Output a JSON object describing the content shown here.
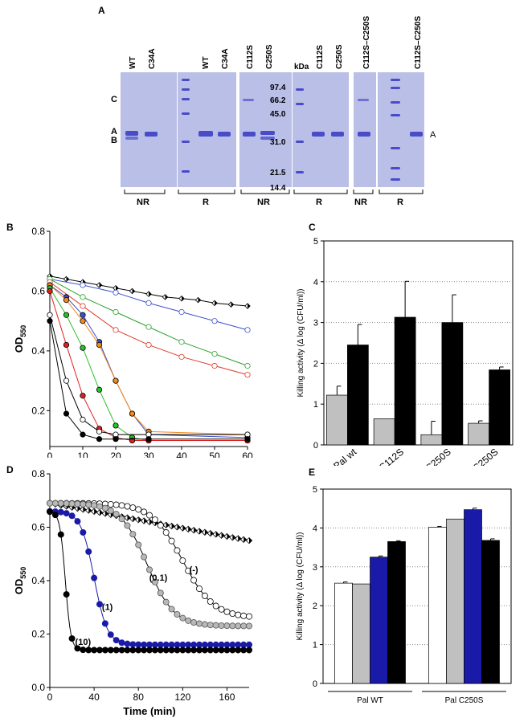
{
  "panel_a": {
    "letter": "A",
    "lane_labels": [
      "WT",
      "C34A",
      "WT",
      "C34A",
      "C112S",
      "C250S",
      "C112S",
      "C250S",
      "C112S–C250S",
      "C112S–C250S"
    ],
    "kda_label": "kDa",
    "mw_markers": [
      "97.4",
      "66.2",
      "45.0",
      "31.0",
      "21.5",
      "14.4"
    ],
    "left_labels": {
      "c": "C",
      "a": "A",
      "b": "B"
    },
    "right_label": "A",
    "group_labels": [
      "NR",
      "R",
      "NR",
      "R",
      "NR",
      "R"
    ]
  },
  "panel_b": {
    "letter": "B"
  },
  "panel_c": {
    "letter": "C"
  },
  "panel_d": {
    "letter": "D"
  },
  "panel_e": {
    "letter": "E"
  },
  "chart_data": [
    {
      "id": "B",
      "type": "line",
      "xlabel": "Time (min)",
      "ylabel": "OD",
      "ylabel_sub": "550",
      "xlim": [
        0,
        60
      ],
      "ylim": [
        0.08,
        0.8
      ],
      "xticks": [
        0,
        10,
        20,
        30,
        40,
        50,
        60
      ],
      "yticks": [
        0.2,
        0.4,
        0.6,
        0.8
      ],
      "series": [
        {
          "name": "control",
          "color": "#000000",
          "marker": "diamond-half",
          "x": [
            0,
            5,
            10,
            15,
            20,
            25,
            30,
            35,
            40,
            45,
            50,
            55,
            60
          ],
          "y": [
            0.65,
            0.64,
            0.63,
            0.62,
            0.61,
            0.6,
            0.59,
            0.58,
            0.575,
            0.57,
            0.56,
            0.555,
            0.55
          ]
        },
        {
          "name": "blue",
          "color": "#3a4fc8",
          "marker": "open",
          "x": [
            0,
            10,
            20,
            30,
            40,
            50,
            60
          ],
          "y": [
            0.64,
            0.62,
            0.595,
            0.56,
            0.53,
            0.5,
            0.47
          ]
        },
        {
          "name": "green",
          "color": "#2aa12a",
          "marker": "open",
          "x": [
            0,
            10,
            20,
            30,
            40,
            50,
            60
          ],
          "y": [
            0.64,
            0.58,
            0.53,
            0.48,
            0.43,
            0.39,
            0.35
          ]
        },
        {
          "name": "red",
          "color": "#e03a2a",
          "marker": "open",
          "x": [
            0,
            10,
            20,
            30,
            40,
            50,
            60
          ],
          "y": [
            0.63,
            0.55,
            0.47,
            0.42,
            0.38,
            0.35,
            0.32
          ]
        },
        {
          "name": "blue-fast",
          "color": "#3a4fc8",
          "marker": "filled",
          "x": [
            0,
            5,
            10,
            15,
            20,
            25,
            30,
            60
          ],
          "y": [
            0.62,
            0.58,
            0.52,
            0.43,
            0.3,
            0.19,
            0.12,
            0.11
          ]
        },
        {
          "name": "orange",
          "color": "#f08a1e",
          "marker": "filled",
          "x": [
            0,
            5,
            10,
            15,
            20,
            25,
            30,
            60
          ],
          "y": [
            0.62,
            0.57,
            0.5,
            0.42,
            0.3,
            0.19,
            0.13,
            0.12
          ]
        },
        {
          "name": "green-fast",
          "color": "#2ac02a",
          "marker": "filled",
          "x": [
            0,
            5,
            10,
            15,
            20,
            25,
            30,
            60
          ],
          "y": [
            0.61,
            0.52,
            0.41,
            0.27,
            0.15,
            0.11,
            0.1,
            0.1
          ]
        },
        {
          "name": "red-fast",
          "color": "#e02020",
          "marker": "filled",
          "x": [
            0,
            5,
            10,
            15,
            20,
            25,
            30,
            60
          ],
          "y": [
            0.6,
            0.42,
            0.25,
            0.14,
            0.11,
            0.1,
            0.1,
            0.1
          ]
        },
        {
          "name": "open-black",
          "color": "#000000",
          "marker": "open",
          "x": [
            0,
            5,
            10,
            15,
            20,
            30,
            60
          ],
          "y": [
            0.52,
            0.3,
            0.17,
            0.13,
            0.12,
            0.12,
            0.12
          ]
        },
        {
          "name": "filled-black",
          "color": "#000000",
          "marker": "filled",
          "x": [
            0,
            5,
            10,
            15,
            20,
            30,
            60
          ],
          "y": [
            0.5,
            0.19,
            0.12,
            0.105,
            0.105,
            0.105,
            0.105
          ]
        }
      ]
    },
    {
      "id": "C",
      "type": "bar",
      "ylabel": "Killing activity (Δ log (CFU/ml))",
      "ylim": [
        0,
        5
      ],
      "yticks": [
        0,
        1,
        2,
        3,
        4,
        5
      ],
      "categories": [
        "Pal wt",
        "C112S",
        "C250S",
        "C112S/C250S"
      ],
      "series": [
        {
          "name": "grey",
          "color": "#c0c0c0",
          "values": [
            1.22,
            0.64,
            0.25,
            0.53
          ],
          "errors": [
            0.22,
            0,
            0.33,
            0.06
          ]
        },
        {
          "name": "black",
          "color": "#000000",
          "values": [
            2.45,
            3.13,
            3.0,
            1.84
          ],
          "errors": [
            0.5,
            0.88,
            0.68,
            0.07
          ]
        }
      ]
    },
    {
      "id": "D",
      "type": "line",
      "xlabel": "Time (min)",
      "ylabel": "OD",
      "ylabel_sub": "550",
      "xlim": [
        0,
        180
      ],
      "ylim": [
        0,
        0.8
      ],
      "xticks": [
        0,
        40,
        80,
        120,
        160
      ],
      "yticks": [
        0.0,
        0.2,
        0.4,
        0.6,
        0.8
      ],
      "annotations": [
        "(-)",
        "(0.1)",
        "(1)",
        "(10)"
      ],
      "series": [
        {
          "name": "control",
          "color": "#000000",
          "marker": "diamond-half",
          "curve": [
            0.69,
            0.55,
            0,
            1000
          ]
        },
        {
          "name": "(-)",
          "color": "#000000",
          "marker": "open",
          "curve": [
            0.69,
            0.26,
            120,
            14
          ]
        },
        {
          "name": "(0.1)",
          "color": "#000000",
          "marker": "grey",
          "curve": [
            0.69,
            0.23,
            88,
            12
          ]
        },
        {
          "name": "(1)",
          "color": "#1a1aa8",
          "marker": "blue",
          "curve": [
            0.66,
            0.16,
            40,
            6
          ]
        },
        {
          "name": "(10)",
          "color": "#000000",
          "marker": "filled",
          "curve": [
            0.66,
            0.14,
            14,
            2.5
          ]
        }
      ]
    },
    {
      "id": "E",
      "type": "bar",
      "ylabel": "Killing activity (Δ log (CFU/ml))",
      "ylim": [
        0,
        5
      ],
      "yticks": [
        0,
        1,
        2,
        3,
        4,
        5
      ],
      "categories": [
        "Pal WT",
        "Pal C250S"
      ],
      "series": [
        {
          "name": "white",
          "color": "#ffffff",
          "values": [
            2.58,
            4.02
          ],
          "errors": [
            0.03,
            0.02
          ]
        },
        {
          "name": "grey",
          "color": "#c0c0c0",
          "values": [
            2.56,
            4.23
          ],
          "errors": [
            0,
            0
          ]
        },
        {
          "name": "blue",
          "color": "#1a1aa8",
          "values": [
            3.25,
            4.47
          ],
          "errors": [
            0.03,
            0.04
          ]
        },
        {
          "name": "black",
          "color": "#000000",
          "values": [
            3.65,
            3.68
          ],
          "errors": [
            0.02,
            0.04
          ]
        }
      ]
    }
  ]
}
